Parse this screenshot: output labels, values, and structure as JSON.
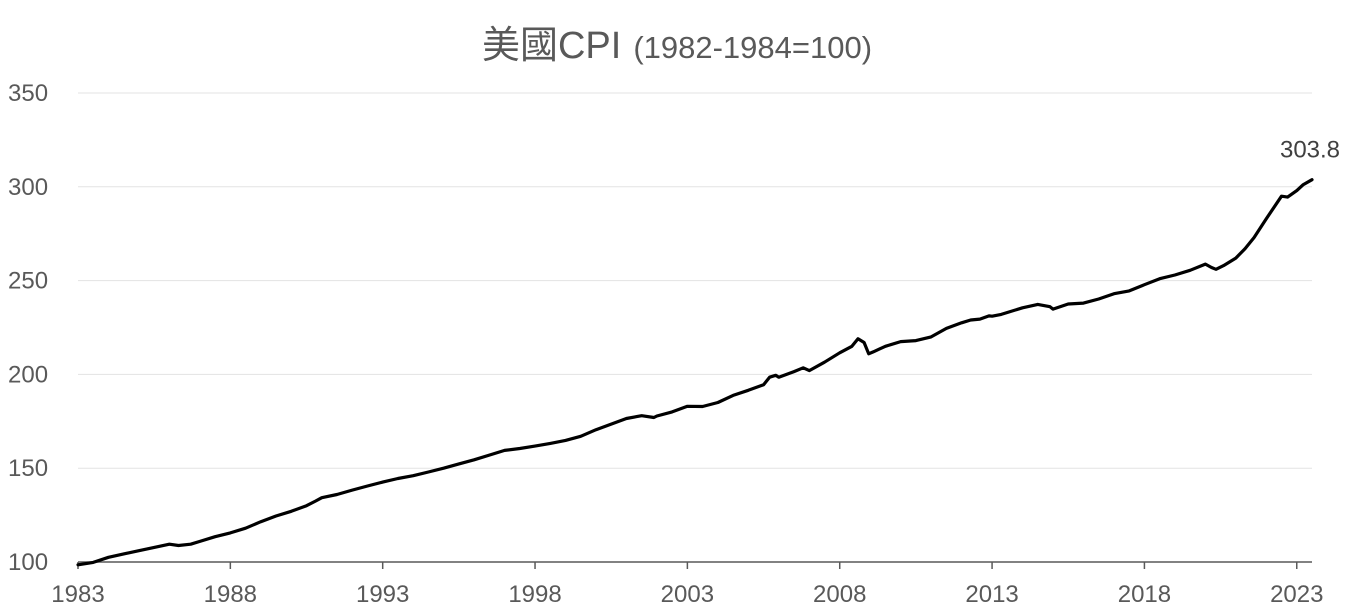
{
  "chart_data": {
    "type": "line",
    "title": "美國CPI",
    "subtitle": "(1982-1984=100)",
    "xlabel": "",
    "ylabel": "",
    "xlim": [
      1983,
      2023.5
    ],
    "ylim": [
      100,
      350
    ],
    "yticks": [
      "100",
      "150",
      "200",
      "250",
      "300",
      "350"
    ],
    "xticks": [
      "1983",
      "1988",
      "1993",
      "1998",
      "2003",
      "2008",
      "2013",
      "2018",
      "2023"
    ],
    "grid": true,
    "legend": "none",
    "line_color": "#000000",
    "end_label": "303.8",
    "series": [
      {
        "x": [
          1983.0,
          1983.5,
          1984.0,
          1984.5,
          1985.0,
          1985.5,
          1986.0,
          1986.3,
          1986.7,
          1987.0,
          1987.5,
          1988.0,
          1988.5,
          1989.0,
          1989.5,
          1990.0,
          1990.5,
          1990.8,
          1991.0,
          1991.5,
          1992.0,
          1992.5,
          1993.0,
          1993.5,
          1994.0,
          1994.5,
          1995.0,
          1995.5,
          1996.0,
          1996.5,
          1997.0,
          1997.5,
          1998.0,
          1998.5,
          1999.0,
          1999.5,
          2000.0,
          2000.5,
          2001.0,
          2001.5,
          2001.9,
          2002.0,
          2002.5,
          2003.0,
          2003.5,
          2004.0,
          2004.5,
          2005.0,
          2005.5,
          2005.7,
          2005.9,
          2006.0,
          2006.5,
          2006.8,
          2007.0,
          2007.5,
          2008.0,
          2008.4,
          2008.6,
          2008.8,
          2008.95,
          2009.1,
          2009.3,
          2009.5,
          2010.0,
          2010.5,
          2011.0,
          2011.5,
          2012.0,
          2012.3,
          2012.6,
          2012.9,
          2013.0,
          2013.3,
          2013.5,
          2014.0,
          2014.5,
          2014.9,
          2015.0,
          2015.5,
          2016.0,
          2016.5,
          2017.0,
          2017.5,
          2018.0,
          2018.5,
          2019.0,
          2019.5,
          2020.0,
          2020.2,
          2020.35,
          2020.6,
          2021.0,
          2021.3,
          2021.6,
          2022.0,
          2022.5,
          2022.7,
          2023.0,
          2023.2,
          2023.5
        ],
        "values": [
          98.5,
          99.8,
          102.5,
          104.3,
          106.0,
          107.8,
          109.5,
          108.8,
          109.5,
          111.0,
          113.5,
          115.5,
          118.0,
          121.5,
          124.5,
          127.0,
          130.0,
          132.5,
          134.3,
          136.0,
          138.3,
          140.5,
          142.6,
          144.5,
          146.0,
          148.0,
          150.0,
          152.3,
          154.5,
          157.0,
          159.5,
          160.5,
          161.8,
          163.2,
          164.8,
          167.0,
          170.5,
          173.5,
          176.5,
          178.0,
          177.0,
          177.8,
          180.0,
          183.0,
          182.9,
          185.0,
          188.8,
          191.5,
          194.5,
          198.5,
          199.5,
          198.5,
          201.5,
          203.5,
          202.0,
          206.5,
          211.5,
          215.0,
          219.0,
          217.0,
          211.0,
          212.0,
          213.5,
          215.0,
          217.5,
          218.0,
          220.0,
          224.5,
          227.5,
          229.0,
          229.5,
          231.2,
          231.0,
          232.0,
          233.0,
          235.5,
          237.3,
          236.1,
          234.8,
          237.5,
          238.0,
          240.2,
          243.0,
          244.5,
          247.8,
          251.0,
          253.0,
          255.5,
          258.8,
          257.0,
          256.0,
          258.0,
          262.0,
          267.0,
          273.0,
          283.0,
          295.0,
          294.5,
          298.0,
          301.0,
          303.8
        ]
      }
    ]
  }
}
